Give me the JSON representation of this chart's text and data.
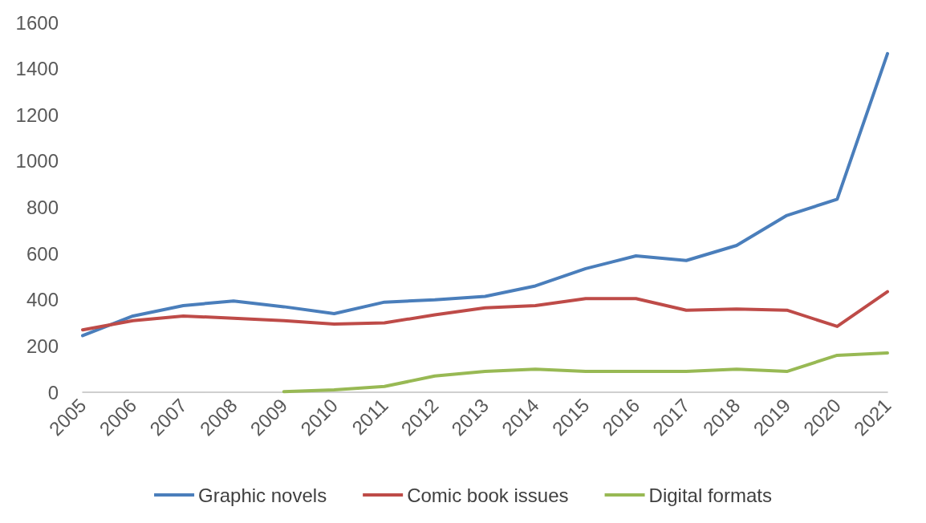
{
  "chart_data": {
    "type": "line",
    "categories": [
      "2005",
      "2006",
      "2007",
      "2008",
      "2009",
      "2010",
      "2011",
      "2012",
      "2013",
      "2014",
      "2015",
      "2016",
      "2017",
      "2018",
      "2019",
      "2020",
      "2021"
    ],
    "series": [
      {
        "name": "Graphic novels",
        "color": "#4a7ebb",
        "values": [
          245,
          330,
          375,
          395,
          370,
          340,
          390,
          400,
          415,
          460,
          535,
          590,
          570,
          635,
          765,
          835,
          1465
        ]
      },
      {
        "name": "Comic book issues",
        "color": "#be4b48",
        "values": [
          270,
          310,
          330,
          320,
          310,
          295,
          300,
          335,
          365,
          375,
          405,
          405,
          355,
          360,
          355,
          285,
          435
        ]
      },
      {
        "name": "Digital formats",
        "color": "#98b954",
        "values": [
          null,
          null,
          null,
          null,
          3,
          10,
          25,
          70,
          90,
          100,
          90,
          90,
          90,
          100,
          90,
          160,
          170
        ]
      }
    ],
    "ylim": [
      0,
      1600
    ],
    "yticks": [
      0,
      200,
      400,
      600,
      800,
      1000,
      1200,
      1400,
      1600
    ],
    "grid": false,
    "legend": "bottom",
    "marker": "none",
    "line_style": "solid"
  }
}
